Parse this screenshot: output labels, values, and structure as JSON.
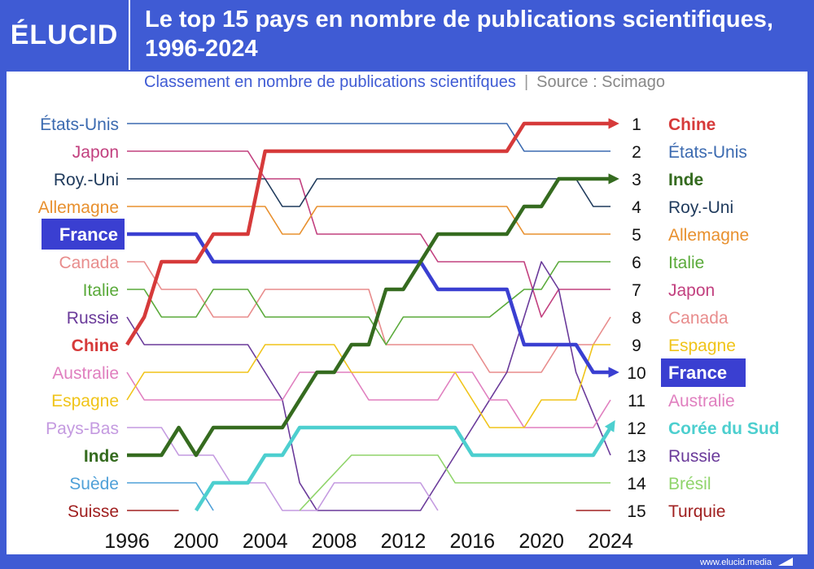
{
  "logo": "ÉLUCID",
  "title": "Le top 15 pays en nombre de publications scientifiques, 1996-2024",
  "subtitle": "Classement en nombre de publications scientifques",
  "source": "Source : Scimago",
  "footer": "www.elucid.media",
  "chart_data": {
    "type": "line",
    "subtype": "bump chart (rank over time)",
    "title": "Le top 15 pays en nombre de publications scientifiques, 1996-2024",
    "x_ticks": [
      1996,
      2000,
      2004,
      2008,
      2012,
      2016,
      2020,
      2024
    ],
    "xlim": [
      1996,
      2024
    ],
    "ylim": [
      15,
      1
    ],
    "y_ticks": [
      1,
      2,
      3,
      4,
      5,
      6,
      7,
      8,
      9,
      10,
      11,
      12,
      13,
      14,
      15
    ],
    "left_labels": [
      "États-Unis",
      "Japon",
      "Roy.-Uni",
      "Allemagne",
      "France",
      "Canada",
      "Italie",
      "Russie",
      "Chine",
      "Australie",
      "Espagne",
      "Pays-Bas",
      "Inde",
      "Suède",
      "Suisse"
    ],
    "right_labels": [
      "Chine",
      "États-Unis",
      "Inde",
      "Roy.-Uni",
      "Allemagne",
      "Italie",
      "Japon",
      "Canada",
      "Espagne",
      "France",
      "Australie",
      "Corée du Sud",
      "Russie",
      "Brésil",
      "Turquie"
    ],
    "series": [
      {
        "name": "États-Unis",
        "color": "#3b6ab0",
        "width": 1.6,
        "points": [
          [
            1996,
            1
          ],
          [
            2018,
            1
          ],
          [
            2019,
            2
          ],
          [
            2024,
            2
          ]
        ]
      },
      {
        "name": "Japon",
        "color": "#c2407f",
        "width": 1.6,
        "points": [
          [
            1996,
            2
          ],
          [
            2003,
            2
          ],
          [
            2004,
            3
          ],
          [
            2006,
            3
          ],
          [
            2007,
            5
          ],
          [
            2013,
            5
          ],
          [
            2014,
            6
          ],
          [
            2019,
            6
          ],
          [
            2020,
            8
          ],
          [
            2021,
            7
          ],
          [
            2024,
            7
          ]
        ]
      },
      {
        "name": "Roy.-Uni",
        "color": "#1f3a5c",
        "width": 1.6,
        "points": [
          [
            1996,
            3
          ],
          [
            2004,
            3
          ],
          [
            2005,
            4
          ],
          [
            2006,
            4
          ],
          [
            2007,
            3
          ],
          [
            2022,
            3
          ],
          [
            2023,
            4
          ],
          [
            2024,
            4
          ]
        ]
      },
      {
        "name": "Allemagne",
        "color": "#e8902e",
        "width": 1.6,
        "points": [
          [
            1996,
            4
          ],
          [
            2004,
            4
          ],
          [
            2005,
            5
          ],
          [
            2006,
            5
          ],
          [
            2007,
            4
          ],
          [
            2018,
            4
          ],
          [
            2019,
            5
          ],
          [
            2024,
            5
          ]
        ]
      },
      {
        "name": "France",
        "color": "#3a3fd1",
        "width": 4.5,
        "points": [
          [
            1996,
            5
          ],
          [
            2000,
            5
          ],
          [
            2001,
            6
          ],
          [
            2013,
            6
          ],
          [
            2014,
            7
          ],
          [
            2017,
            7
          ],
          [
            2018,
            7
          ],
          [
            2019,
            9
          ],
          [
            2022,
            9
          ],
          [
            2023,
            10
          ],
          [
            2024,
            10
          ]
        ]
      },
      {
        "name": "Canada",
        "color": "#e88c8c",
        "width": 1.6,
        "points": [
          [
            1996,
            6
          ],
          [
            1997,
            6
          ],
          [
            1998,
            7
          ],
          [
            2000,
            7
          ],
          [
            2001,
            8
          ],
          [
            2003,
            8
          ],
          [
            2004,
            7
          ],
          [
            2010,
            7
          ],
          [
            2011,
            9
          ],
          [
            2016,
            9
          ],
          [
            2017,
            10
          ],
          [
            2020,
            10
          ],
          [
            2021,
            9
          ],
          [
            2023,
            9
          ],
          [
            2024,
            8
          ]
        ]
      },
      {
        "name": "Italie",
        "color": "#5aaa3a",
        "width": 1.6,
        "points": [
          [
            1996,
            7
          ],
          [
            1997,
            7
          ],
          [
            1998,
            8
          ],
          [
            2000,
            8
          ],
          [
            2001,
            7
          ],
          [
            2003,
            7
          ],
          [
            2004,
            8
          ],
          [
            2010,
            8
          ],
          [
            2011,
            9
          ],
          [
            2012,
            8
          ],
          [
            2016,
            8
          ],
          [
            2017,
            8
          ],
          [
            2019,
            7
          ],
          [
            2020,
            7
          ],
          [
            2021,
            6
          ],
          [
            2024,
            6
          ]
        ]
      },
      {
        "name": "Russie",
        "color": "#6a3a9a",
        "width": 1.6,
        "points": [
          [
            1996,
            8
          ],
          [
            1997,
            9
          ],
          [
            2003,
            9
          ],
          [
            2004,
            10
          ],
          [
            2005,
            11
          ],
          [
            2006,
            14
          ],
          [
            2007,
            15
          ],
          [
            2013,
            15
          ],
          [
            2016,
            12
          ],
          [
            2018,
            10
          ],
          [
            2020,
            6
          ],
          [
            2021,
            7
          ],
          [
            2022,
            10
          ],
          [
            2024,
            13
          ]
        ]
      },
      {
        "name": "Chine",
        "color": "#d63a3a",
        "width": 4.5,
        "points": [
          [
            1996,
            9
          ],
          [
            1997,
            8
          ],
          [
            1998,
            6
          ],
          [
            2000,
            6
          ],
          [
            2001,
            5
          ],
          [
            2003,
            5
          ],
          [
            2004,
            2
          ],
          [
            2018,
            2
          ],
          [
            2019,
            1
          ],
          [
            2024,
            1
          ]
        ]
      },
      {
        "name": "Australie",
        "color": "#e07fbf",
        "width": 1.6,
        "points": [
          [
            1996,
            10
          ],
          [
            1997,
            11
          ],
          [
            2005,
            11
          ],
          [
            2006,
            10
          ],
          [
            2009,
            10
          ],
          [
            2010,
            11
          ],
          [
            2014,
            11
          ],
          [
            2015,
            10
          ],
          [
            2016,
            10
          ],
          [
            2017,
            11
          ],
          [
            2018,
            11
          ],
          [
            2019,
            12
          ],
          [
            2023,
            12
          ],
          [
            2024,
            11
          ]
        ]
      },
      {
        "name": "Espagne",
        "color": "#f0c419",
        "width": 1.6,
        "points": [
          [
            1996,
            11
          ],
          [
            1997,
            10
          ],
          [
            2003,
            10
          ],
          [
            2004,
            9
          ],
          [
            2008,
            9
          ],
          [
            2009,
            10
          ],
          [
            2015,
            10
          ],
          [
            2016,
            11
          ],
          [
            2017,
            12
          ],
          [
            2019,
            12
          ],
          [
            2020,
            11
          ],
          [
            2022,
            11
          ],
          [
            2023,
            9
          ],
          [
            2024,
            9
          ]
        ]
      },
      {
        "name": "Pays-Bas",
        "color": "#c49ae0",
        "width": 1.6,
        "points": [
          [
            1996,
            12
          ],
          [
            1998,
            12
          ],
          [
            1999,
            13
          ],
          [
            2001,
            13
          ],
          [
            2002,
            14
          ],
          [
            2004,
            14
          ],
          [
            2005,
            15
          ],
          [
            2007,
            15
          ],
          [
            2008,
            14
          ],
          [
            2013,
            14
          ],
          [
            2014,
            15
          ]
        ]
      },
      {
        "name": "Inde",
        "color": "#356b1f",
        "width": 4.5,
        "points": [
          [
            1996,
            13
          ],
          [
            1998,
            13
          ],
          [
            1999,
            12
          ],
          [
            2000,
            13
          ],
          [
            2001,
            12
          ],
          [
            2005,
            12
          ],
          [
            2006,
            11
          ],
          [
            2007,
            10
          ],
          [
            2008,
            10
          ],
          [
            2009,
            9
          ],
          [
            2010,
            9
          ],
          [
            2011,
            7
          ],
          [
            2012,
            7
          ],
          [
            2014,
            5
          ],
          [
            2018,
            5
          ],
          [
            2019,
            4
          ],
          [
            2020,
            4
          ],
          [
            2021,
            3
          ],
          [
            2024,
            3
          ]
        ]
      },
      {
        "name": "Suède",
        "color": "#4fa0d8",
        "width": 1.6,
        "points": [
          [
            1996,
            14
          ],
          [
            2000,
            14
          ],
          [
            2001,
            15
          ]
        ]
      },
      {
        "name": "Suisse",
        "color": "#a02020",
        "width": 1.6,
        "points": [
          [
            1996,
            15
          ],
          [
            1999,
            15
          ]
        ]
      },
      {
        "name": "Corée du Sud",
        "color": "#4dcfcf",
        "width": 4.5,
        "points": [
          [
            2000,
            15
          ],
          [
            2001,
            14
          ],
          [
            2003,
            14
          ],
          [
            2004,
            13
          ],
          [
            2005,
            13
          ],
          [
            2006,
            12
          ],
          [
            2015,
            12
          ],
          [
            2016,
            13
          ],
          [
            2023,
            13
          ],
          [
            2024,
            12
          ]
        ]
      },
      {
        "name": "Brésil",
        "color": "#8fd46a",
        "width": 1.6,
        "points": [
          [
            2006,
            15
          ],
          [
            2009,
            13
          ],
          [
            2013,
            13
          ],
          [
            2014,
            13
          ],
          [
            2015,
            14
          ],
          [
            2024,
            14
          ]
        ]
      },
      {
        "name": "Turquie",
        "color": "#a02020",
        "width": 1.6,
        "points": [
          [
            2022,
            15
          ],
          [
            2024,
            15
          ]
        ]
      }
    ],
    "highlighted": [
      "Chine",
      "Inde",
      "France",
      "Corée du Sud"
    ],
    "grid": false
  },
  "label_colors": {
    "États-Unis": "#3b6ab0",
    "Japon": "#c2407f",
    "Roy.-Uni": "#1f3a5c",
    "Allemagne": "#e8902e",
    "France": "#3a3fd1",
    "Canada": "#e88c8c",
    "Italie": "#5aaa3a",
    "Russie": "#6a3a9a",
    "Chine": "#d63a3a",
    "Australie": "#e07fbf",
    "Espagne": "#f0c419",
    "Pays-Bas": "#c49ae0",
    "Inde": "#356b1f",
    "Suède": "#4fa0d8",
    "Suisse": "#a02020",
    "Corée du Sud": "#4dcfcf",
    "Brésil": "#8fd46a",
    "Turquie": "#a02020"
  }
}
